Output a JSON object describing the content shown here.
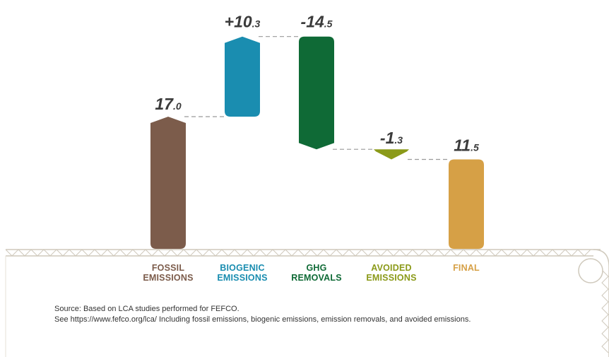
{
  "chart_data": {
    "type": "waterfall",
    "colors": {
      "fossil": "#7c5c4b",
      "biogenic": "#1a8db0",
      "removals": "#0f6a36",
      "avoided": "#8b9a19",
      "final": "#d6a046",
      "connector": "#9a9a9a",
      "ground": "#cfc9bc"
    },
    "bars": [
      {
        "key": "fossil",
        "label_lines": [
          "FOSSIL",
          "EMISSIONS"
        ],
        "value": 17.0,
        "start": 0,
        "end": 17.0,
        "value_main": "17",
        "value_dec": ".0",
        "color": "#7c5c4b"
      },
      {
        "key": "biogenic",
        "label_lines": [
          "BIOGENIC",
          "EMISSIONS"
        ],
        "value": 10.3,
        "start": 17.0,
        "end": 27.3,
        "value_main": "+10",
        "value_dec": ".3",
        "color": "#1a8db0"
      },
      {
        "key": "removals",
        "label_lines": [
          "GHG",
          "REMOVALS"
        ],
        "value": -14.5,
        "start": 27.3,
        "end": 12.8,
        "value_main": "-14",
        "value_dec": ".5",
        "color": "#0f6a36"
      },
      {
        "key": "avoided",
        "label_lines": [
          "AVOIDED",
          "EMISSIONS"
        ],
        "value": -1.3,
        "start": 12.8,
        "end": 11.5,
        "value_main": "-1",
        "value_dec": ".3",
        "color": "#8b9a19"
      },
      {
        "key": "final",
        "label_lines": [
          "FINAL"
        ],
        "value": 11.5,
        "start": 0,
        "end": 11.5,
        "value_main": "11",
        "value_dec": ".5",
        "color": "#d6a046"
      }
    ],
    "ylim": [
      0,
      27.3
    ]
  },
  "source": {
    "line1": "Source: Based on LCA studies performed for FEFCO.",
    "line2": "See https://www.fefco.org/lca/ Including fossil emissions, biogenic emissions, emission removals, and avoided emissions."
  }
}
